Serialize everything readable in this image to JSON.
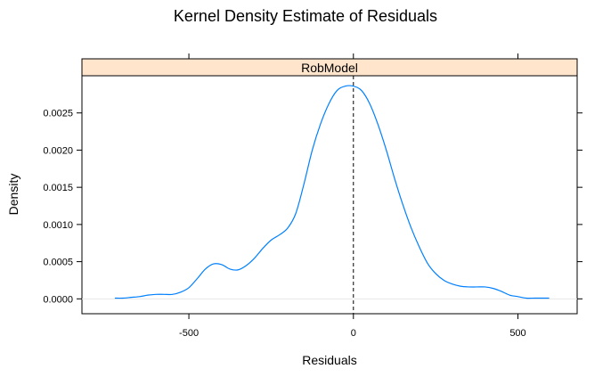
{
  "chart_data": {
    "type": "line",
    "title": "Kernel Density Estimate of Residuals",
    "xlabel": "Residuals",
    "ylabel": "Density",
    "panel_label": "RobModel",
    "xlim": [
      -825,
      680
    ],
    "ylim": [
      -0.0002,
      0.003
    ],
    "x_ticks": [
      {
        "value": -500,
        "label": "-500"
      },
      {
        "value": 0,
        "label": "0"
      },
      {
        "value": 500,
        "label": "500"
      }
    ],
    "y_ticks": [
      {
        "value": 0.0,
        "label": "0.0000"
      },
      {
        "value": 0.0005,
        "label": "0.0005"
      },
      {
        "value": 0.001,
        "label": "0.0010"
      },
      {
        "value": 0.0015,
        "label": "0.0015"
      },
      {
        "value": 0.002,
        "label": "0.0020"
      },
      {
        "value": 0.0025,
        "label": "0.0025"
      }
    ],
    "reference_line": {
      "x": 0,
      "style": "dashed",
      "color": "#000000"
    },
    "zero_line_color": "#e6e6e6",
    "strip_color": "#ffe5cc",
    "grid": false,
    "series": [
      {
        "color": "#0080ff",
        "x": [
          -725,
          -700,
          -675,
          -650,
          -625,
          -600,
          -575,
          -550,
          -525,
          -500,
          -475,
          -450,
          -425,
          -400,
          -375,
          -350,
          -325,
          -300,
          -275,
          -250,
          -225,
          -200,
          -175,
          -150,
          -125,
          -100,
          -75,
          -50,
          -25,
          0,
          25,
          50,
          75,
          100,
          125,
          150,
          175,
          200,
          225,
          250,
          275,
          300,
          325,
          350,
          375,
          400,
          425,
          450,
          475,
          500,
          525,
          550,
          575,
          595
        ],
        "y": [
          1e-05,
          1e-05,
          2e-05,
          3e-05,
          5e-05,
          6e-05,
          6e-05,
          6e-05,
          9e-05,
          0.00015,
          0.00027,
          0.0004,
          0.00047,
          0.00046,
          0.0004,
          0.00039,
          0.00045,
          0.00055,
          0.00068,
          0.00079,
          0.00086,
          0.00095,
          0.00115,
          0.00155,
          0.002,
          0.00235,
          0.00262,
          0.0028,
          0.00286,
          0.00286,
          0.0028,
          0.00262,
          0.00234,
          0.002,
          0.00162,
          0.00127,
          0.00096,
          0.0007,
          0.00048,
          0.00034,
          0.00025,
          0.0002,
          0.00017,
          0.00016,
          0.00016,
          0.00016,
          0.00014,
          0.0001,
          5e-05,
          3e-05,
          1e-05,
          1e-05,
          1e-05,
          1e-05
        ]
      }
    ]
  }
}
